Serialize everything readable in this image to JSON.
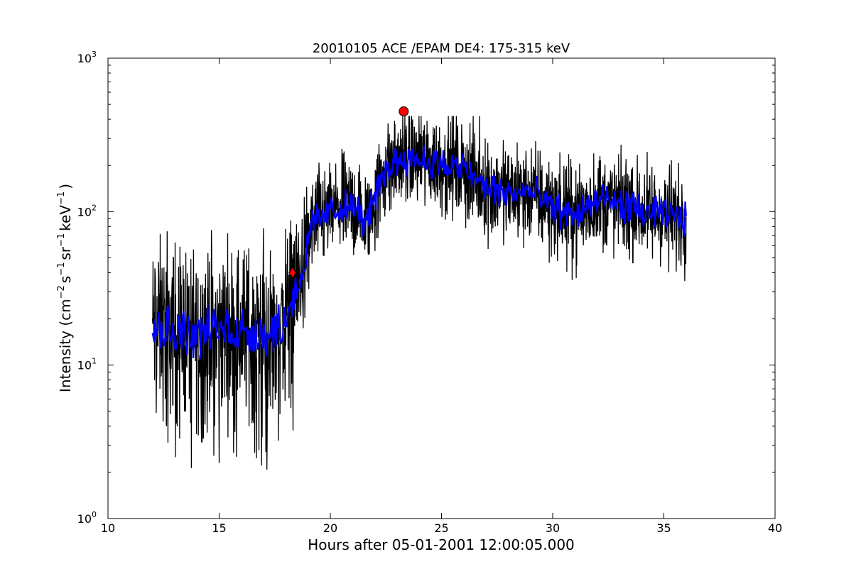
{
  "chart_data": {
    "type": "line",
    "title": "20010105 ACE /EPAM DE4: 175-315 keV",
    "xlabel": "Hours after 05-01-2001 12:00:05.000",
    "ylabel": {
      "prefix": "Intensity (cm",
      "sup1": "−2",
      "part2": "s",
      "sup2": "−1",
      "part3": "sr",
      "sup3": "−1",
      "part4": "keV",
      "sup4": "−1",
      "suffix": ")"
    },
    "xlim": [
      10,
      40
    ],
    "ylim": [
      1,
      1000
    ],
    "yscale": "log",
    "grid": false,
    "x_ticks": [
      10,
      15,
      20,
      25,
      30,
      35,
      40
    ],
    "x_tick_labels": [
      "10",
      "15",
      "20",
      "25",
      "30",
      "35",
      "40"
    ],
    "y_ticks": [
      {
        "value": 1,
        "base": "10",
        "exp": "0"
      },
      {
        "value": 10,
        "base": "10",
        "exp": "1"
      },
      {
        "value": 100,
        "base": "10",
        "exp": "2"
      },
      {
        "value": 1000,
        "base": "10",
        "exp": "3"
      }
    ],
    "series": [
      {
        "color": "#000000",
        "style": "raw-noisy",
        "anchor_x": [
          12.0,
          13.0,
          14.0,
          15.0,
          16.0,
          17.0,
          17.9,
          18.3,
          18.8,
          19.2,
          20.0,
          21.0,
          21.6,
          22.5,
          23.3,
          24.0,
          25.0,
          26.0,
          27.0,
          28.0,
          29.0,
          30.0,
          31.0,
          32.0,
          33.0,
          34.0,
          35.0,
          36.0
        ],
        "anchor_y": [
          18,
          17,
          16,
          17,
          17,
          16,
          18,
          28,
          42,
          85,
          100,
          110,
          85,
          190,
          230,
          220,
          200,
          190,
          145,
          130,
          135,
          105,
          95,
          118,
          112,
          100,
          96,
          90
        ]
      },
      {
        "color": "#0000ff",
        "style": "smoothed",
        "anchor_x": [
          12.0,
          13.0,
          14.0,
          15.0,
          16.0,
          17.0,
          17.9,
          18.3,
          18.8,
          19.2,
          20.0,
          21.0,
          21.6,
          22.5,
          23.3,
          24.0,
          25.0,
          26.0,
          27.0,
          28.0,
          29.0,
          30.0,
          31.0,
          32.0,
          33.0,
          34.0,
          35.0,
          36.0
        ],
        "anchor_y": [
          18,
          17,
          16,
          17,
          17,
          16,
          18,
          28,
          42,
          85,
          100,
          110,
          85,
          190,
          230,
          220,
          200,
          190,
          145,
          130,
          135,
          105,
          95,
          118,
          112,
          100,
          96,
          90
        ]
      }
    ],
    "markers": [
      {
        "shape": "circle",
        "color": "#ff0000",
        "x": 23.3,
        "y": 450
      },
      {
        "shape": "diamond",
        "color": "#ff0000",
        "x": 18.3,
        "y": 40
      }
    ]
  }
}
